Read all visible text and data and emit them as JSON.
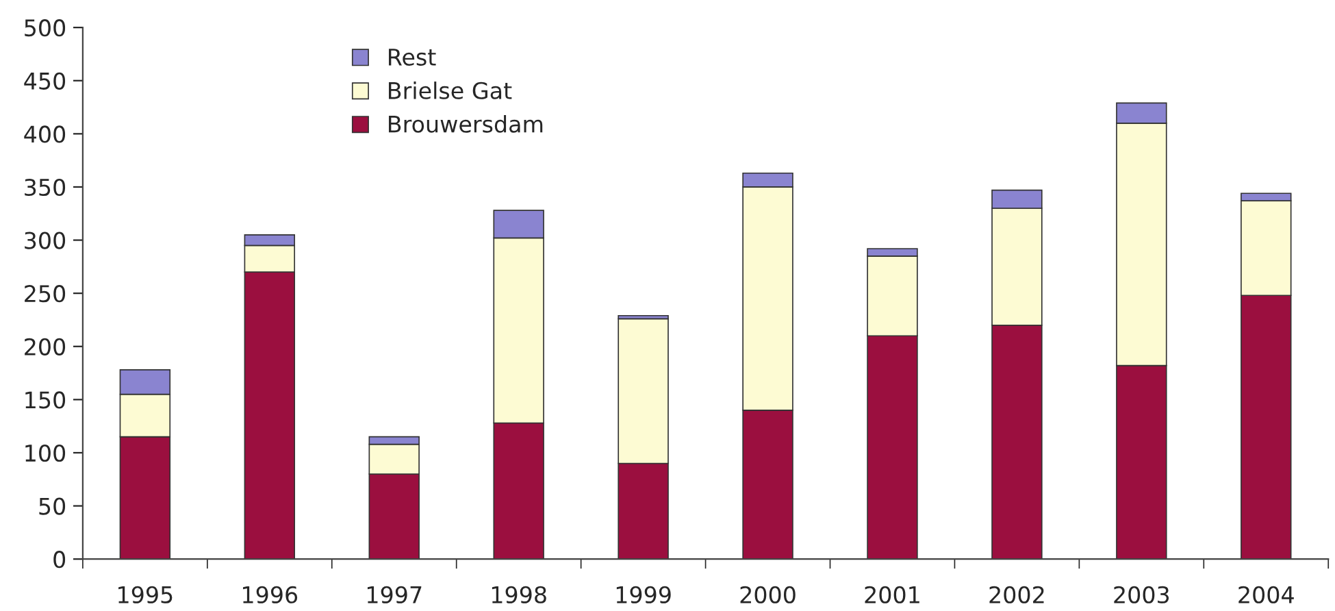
{
  "chart_data": {
    "type": "bar",
    "stacked": true,
    "categories": [
      "1995",
      "1996",
      "1997",
      "1998",
      "1999",
      "2000",
      "2001",
      "2002",
      "2003",
      "2004"
    ],
    "series": [
      {
        "name": "Brouwersdam",
        "color": "#9b0f3f",
        "values": [
          115,
          270,
          80,
          128,
          90,
          140,
          210,
          220,
          182,
          248
        ]
      },
      {
        "name": "Brielse Gat",
        "color": "#fdfbd3",
        "values": [
          40,
          25,
          28,
          174,
          136,
          210,
          75,
          110,
          228,
          89
        ]
      },
      {
        "name": "Rest",
        "color": "#8a84d0",
        "values": [
          23,
          10,
          7,
          26,
          3,
          13,
          7,
          17,
          19,
          7
        ]
      }
    ],
    "ylim": [
      0,
      500
    ],
    "yticks": [
      0,
      50,
      100,
      150,
      200,
      250,
      300,
      350,
      400,
      450,
      500
    ],
    "grid": false,
    "legend": "top left"
  }
}
